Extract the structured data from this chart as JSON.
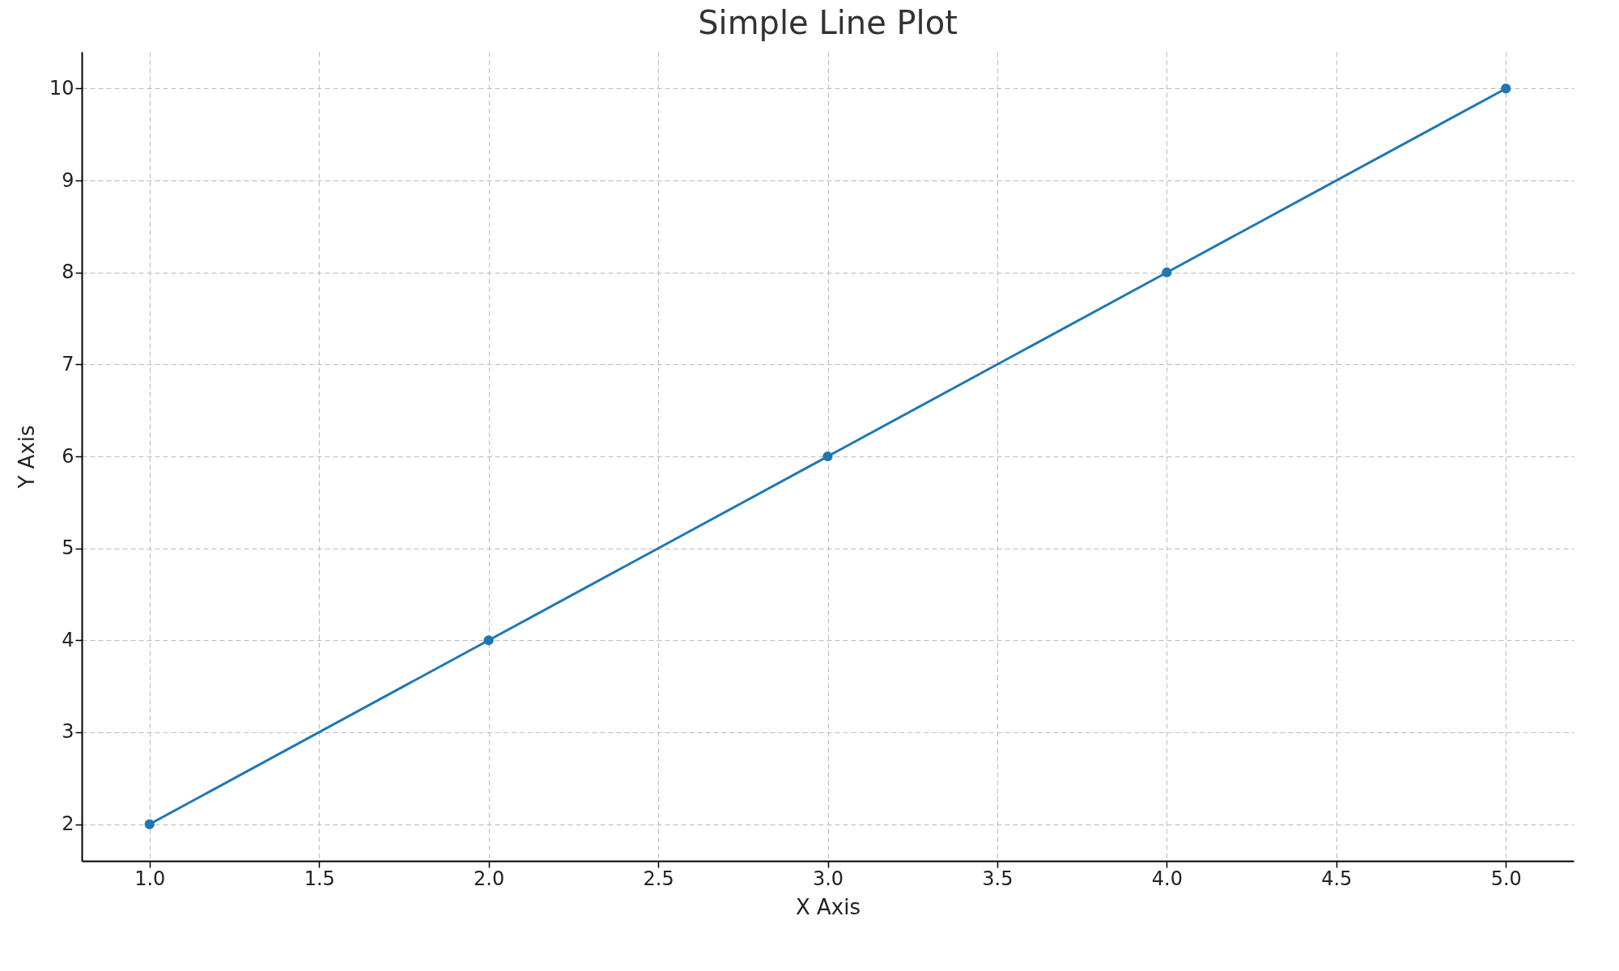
{
  "chart_data": {
    "type": "line",
    "title": "Simple Line Plot",
    "xlabel": "X Axis",
    "ylabel": "Y Axis",
    "x": [
      1,
      2,
      3,
      4,
      5
    ],
    "series": [
      {
        "color": "#1f77b4",
        "values": [
          2,
          4,
          6,
          8,
          10
        ]
      }
    ],
    "xlim": [
      0.8,
      5.2
    ],
    "ylim": [
      1.6,
      10.4
    ],
    "xticks": [
      {
        "value": 1,
        "label": "1.0"
      },
      1.5,
      {
        "value": 2,
        "label": "2.0"
      },
      2.5,
      {
        "value": 3,
        "label": "3.0"
      },
      3.5,
      {
        "value": 4,
        "label": "4.0"
      },
      4.5,
      {
        "value": 5,
        "label": "5.0"
      }
    ],
    "yticks": [
      2,
      3,
      4,
      5,
      6,
      7,
      8,
      9,
      10
    ],
    "grid": true,
    "marker": "circle",
    "line_style": "solid"
  }
}
